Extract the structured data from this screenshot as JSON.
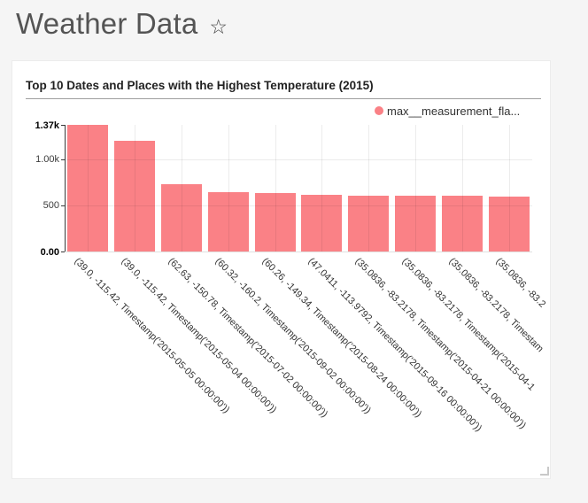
{
  "page": {
    "background_color": "#F5F5F5"
  },
  "header": {
    "title": "Weather Data",
    "favorite_icon": "star-outline",
    "favorite_star_glyph": "☆"
  },
  "chart_card": {
    "title": "Top 10 Dates and Places with the Highest Temperature (2015)",
    "legend": {
      "label": "max__measurement_fla...",
      "marker_color": "#FA8186"
    }
  },
  "chart_data": {
    "type": "bar",
    "title": "Top 10 Dates and Places with the Highest Temperature (2015)",
    "series_name": "max__measurement_fla...",
    "categories": [
      "(39.0, -115.42, Timestamp('2015-05-05 00:00:00'))",
      "(39.0, -115.42, Timestamp('2015-05-04 00:00:00'))",
      "(62.63, -150.78, Timestamp('2015-07-02 00:00:00'))",
      "(60.32, -160.2, Timestamp('2015-09-02 00:00:00'))",
      "(60.26, -149.34, Timestamp('2015-08-24 00:00:00'))",
      "(47.0411, -113.9792, Timestamp('2015-09-16 00:00:00'))",
      "(35.0836, -83.2178, Timestamp('2015-04-21 00:00:00'))",
      "(35.0836, -83.2178, Timestamp('2015-04-1",
      "(35.0836, -83.2178, Timestam",
      "(35.0836, -83.2"
    ],
    "values": [
      1370,
      1200,
      730,
      645,
      630,
      610,
      602,
      600,
      600,
      598
    ],
    "ylim": [
      0,
      1370
    ],
    "yticks": [
      {
        "value": 0,
        "label": "0.00",
        "bold": true,
        "grid": false
      },
      {
        "value": 500,
        "label": "500",
        "bold": false,
        "grid": true
      },
      {
        "value": 1000,
        "label": "1.00k",
        "bold": false,
        "grid": true
      },
      {
        "value": 1370,
        "label": "1.37k",
        "bold": true,
        "grid": false
      }
    ],
    "bar_color": "#FA8186",
    "grid": true,
    "legend_position": "top-right",
    "x_label_rotation_deg": 45
  }
}
